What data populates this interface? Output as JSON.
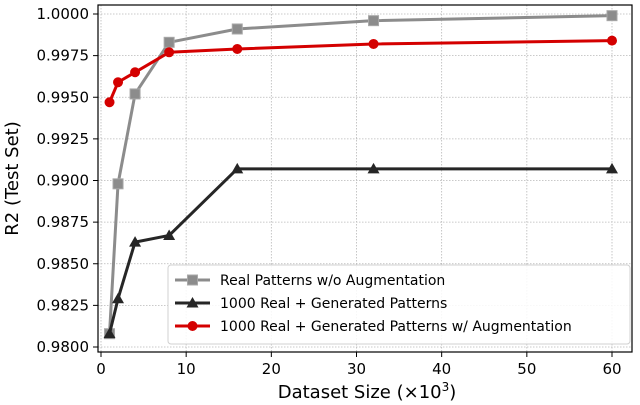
{
  "chart_data": {
    "type": "line",
    "title": "",
    "xlabel": "Dataset Size (×10³)",
    "xlabel_base": "Dataset Size (×10",
    "xlabel_sup": "3",
    "xlabel_tail": ")",
    "ylabel": "R2 (Test Set)",
    "xlim": [
      0,
      60
    ],
    "ylim": [
      0.98,
      1.0
    ],
    "xticks": [
      0,
      10,
      20,
      30,
      40,
      50,
      60
    ],
    "xtick_labels": [
      "0",
      "10",
      "20",
      "30",
      "40",
      "50",
      "60"
    ],
    "yticks": [
      0.98,
      0.9825,
      0.985,
      0.9875,
      0.99,
      0.9925,
      0.995,
      0.9975,
      1.0
    ],
    "ytick_labels": [
      "0.9800",
      "0.9825",
      "0.9850",
      "0.9875",
      "0.9900",
      "0.9925",
      "0.9950",
      "0.9975",
      "1.0000"
    ],
    "grid": true,
    "legend_position": "lower right",
    "x": [
      1,
      2,
      4,
      8,
      16,
      32,
      60
    ],
    "series": [
      {
        "name": "Real Patterns w/o Augmentation",
        "color": "#8c8c8c",
        "marker": "square",
        "values": [
          0.9808,
          0.9898,
          0.9952,
          0.9983,
          0.9991,
          0.9996,
          0.9999
        ]
      },
      {
        "name": "1000 Real + Generated Patterns",
        "color": "#262626",
        "marker": "triangle",
        "values": [
          0.9808,
          0.9829,
          0.9863,
          0.9867,
          0.9907,
          0.9907,
          0.9907
        ]
      },
      {
        "name": "1000 Real + Generated Patterns w/ Augmentation",
        "color": "#d40000",
        "marker": "circle",
        "values": [
          0.9947,
          0.9959,
          0.9965,
          0.9977,
          0.9979,
          0.9982,
          0.9984
        ]
      }
    ]
  }
}
